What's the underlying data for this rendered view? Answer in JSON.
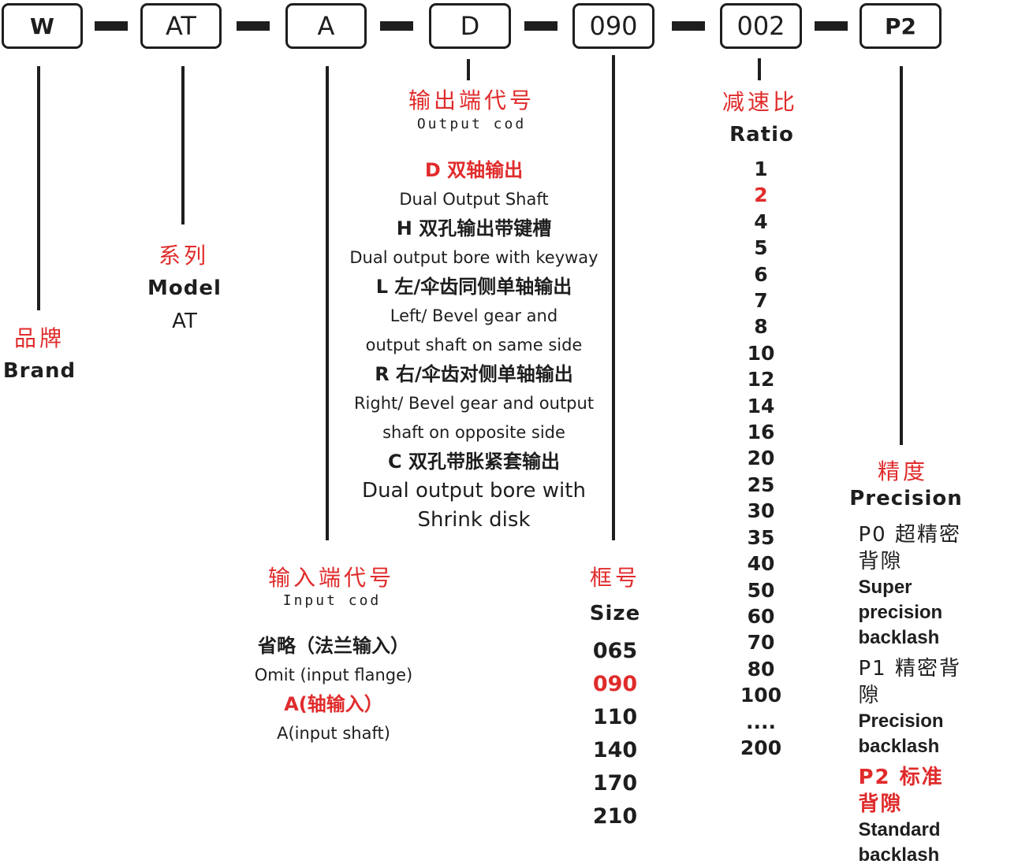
{
  "codes": {
    "brand": "W",
    "series": "AT",
    "input": "A",
    "output": "D",
    "size": "090",
    "ratio": "002",
    "precision": "P2"
  },
  "brand": {
    "cn": "品牌",
    "en": "Brand"
  },
  "model": {
    "cn": "系列",
    "en": "Model",
    "value": "AT"
  },
  "output_code": {
    "cn": "输出端代号",
    "en": "Output cod",
    "options": [
      {
        "cn": "D 双轴输出",
        "en": [
          "Dual Output Shaft"
        ],
        "highlight": true
      },
      {
        "cn": "H 双孔输出带键槽",
        "en": [
          "Dual output bore with keyway"
        ],
        "highlight": false
      },
      {
        "cn": "L 左/伞齿同侧单轴输出",
        "en": [
          "Left/ Bevel gear and",
          "output shaft on same side"
        ],
        "highlight": false
      },
      {
        "cn": "R 右/伞齿对侧单轴输出",
        "en": [
          "Right/ Bevel gear and output",
          "shaft on opposite side"
        ],
        "highlight": false
      },
      {
        "cn": "C 双孔带胀紧套输出",
        "en": [
          "Dual output bore with",
          "Shrink disk"
        ],
        "highlight": false
      }
    ]
  },
  "input_code": {
    "cn": "输入端代号",
    "en": "Input cod",
    "options": [
      {
        "cn": "省略（法兰输入）",
        "en": "Omit (input flange)",
        "highlight": false
      },
      {
        "cn": "A(轴输入）",
        "en": "A(input shaft)",
        "highlight": true
      }
    ]
  },
  "frame": {
    "cn": "框号",
    "en": "Size",
    "values": [
      "065",
      "090",
      "110",
      "140",
      "170",
      "210"
    ],
    "highlight_index": 1
  },
  "ratio": {
    "cn": "减速比",
    "en": "Ratio",
    "values": [
      "1",
      "2",
      "4",
      "5",
      "6",
      "7",
      "8",
      "10",
      "12",
      "14",
      "16",
      "20",
      "25",
      "30",
      "35",
      "40",
      "50",
      "60",
      "70",
      "80",
      "100",
      "....",
      "200"
    ],
    "highlight_index": 1
  },
  "precision": {
    "cn": "精度",
    "en": "Precision",
    "options": [
      {
        "cn": "P0 超精密背隙",
        "en": "Super precision backlash",
        "highlight": false
      },
      {
        "cn": "P1 精密背隙",
        "en": "Precision backlash",
        "highlight": false
      },
      {
        "cn": "P2 标准背隙",
        "en": "Standard backlash",
        "highlight": true
      }
    ]
  },
  "colors": {
    "accent": "#e02b2b",
    "ink": "#1e1e1e"
  }
}
